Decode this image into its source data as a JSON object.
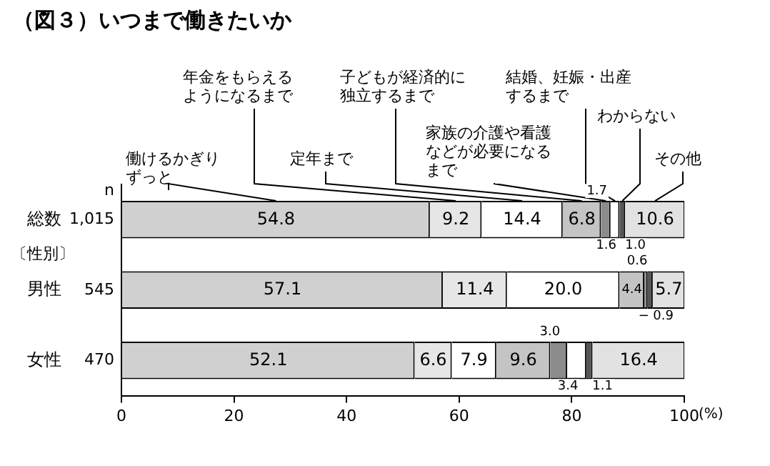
{
  "chart_data": {
    "type": "bar",
    "orientation": "horizontal",
    "stacked": true,
    "title": "（図３）いつまで働きたいか",
    "xlabel": "(%)",
    "categories": [
      "総数",
      "男性",
      "女性"
    ],
    "annotations": [
      "n",
      "1,015",
      "〔性別〕",
      "545",
      "470"
    ],
    "xlim": [
      0,
      100
    ],
    "xticks": [
      0,
      20,
      40,
      60,
      80,
      100
    ],
    "grid": false,
    "legend": false,
    "series": [
      {
        "name": "働けるかぎりずっと",
        "color": "#d0d0d0",
        "values": [
          54.8,
          57.1,
          52.1
        ],
        "value_labels": [
          "54.8",
          "57.1",
          "52.1"
        ]
      },
      {
        "name": "年金をもらえるようになるまで",
        "color": "#e6e6e6",
        "values": [
          9.2,
          11.4,
          6.6
        ],
        "value_labels": [
          "9.2",
          "11.4",
          "6.6"
        ]
      },
      {
        "name": "定年まで",
        "color": "#ffffff",
        "values": [
          14.4,
          20.0,
          7.9
        ],
        "value_labels": [
          "14.4",
          "20.0",
          "7.9"
        ]
      },
      {
        "name": "子どもが経済的に独立するまで",
        "color": "#c4c4c4",
        "values": [
          6.8,
          4.4,
          9.6
        ],
        "value_labels": [
          "6.8",
          "4.4",
          "9.6"
        ]
      },
      {
        "name": "家族の介護や看護などが必要になるまで",
        "color": "#8c8c8c",
        "values": [
          1.7,
          0.6,
          3.0
        ],
        "value_labels": [
          "1.7",
          "0.6",
          "3.0"
        ]
      },
      {
        "name": "結婚、妊娠・出産するまで",
        "color": "#ffffff",
        "values": [
          1.6,
          0,
          3.4
        ],
        "value_labels": [
          "1.6",
          "−",
          "3.4"
        ]
      },
      {
        "name": "わからない",
        "color": "#555555",
        "values": [
          1.0,
          0.9,
          1.1
        ],
        "value_labels": [
          "1.0",
          "0.9",
          "1.1"
        ]
      },
      {
        "name": "その他",
        "color": "#e2e2e2",
        "values": [
          10.6,
          5.7,
          16.4
        ],
        "value_labels": [
          "10.6",
          "5.7",
          "16.4"
        ]
      }
    ]
  }
}
